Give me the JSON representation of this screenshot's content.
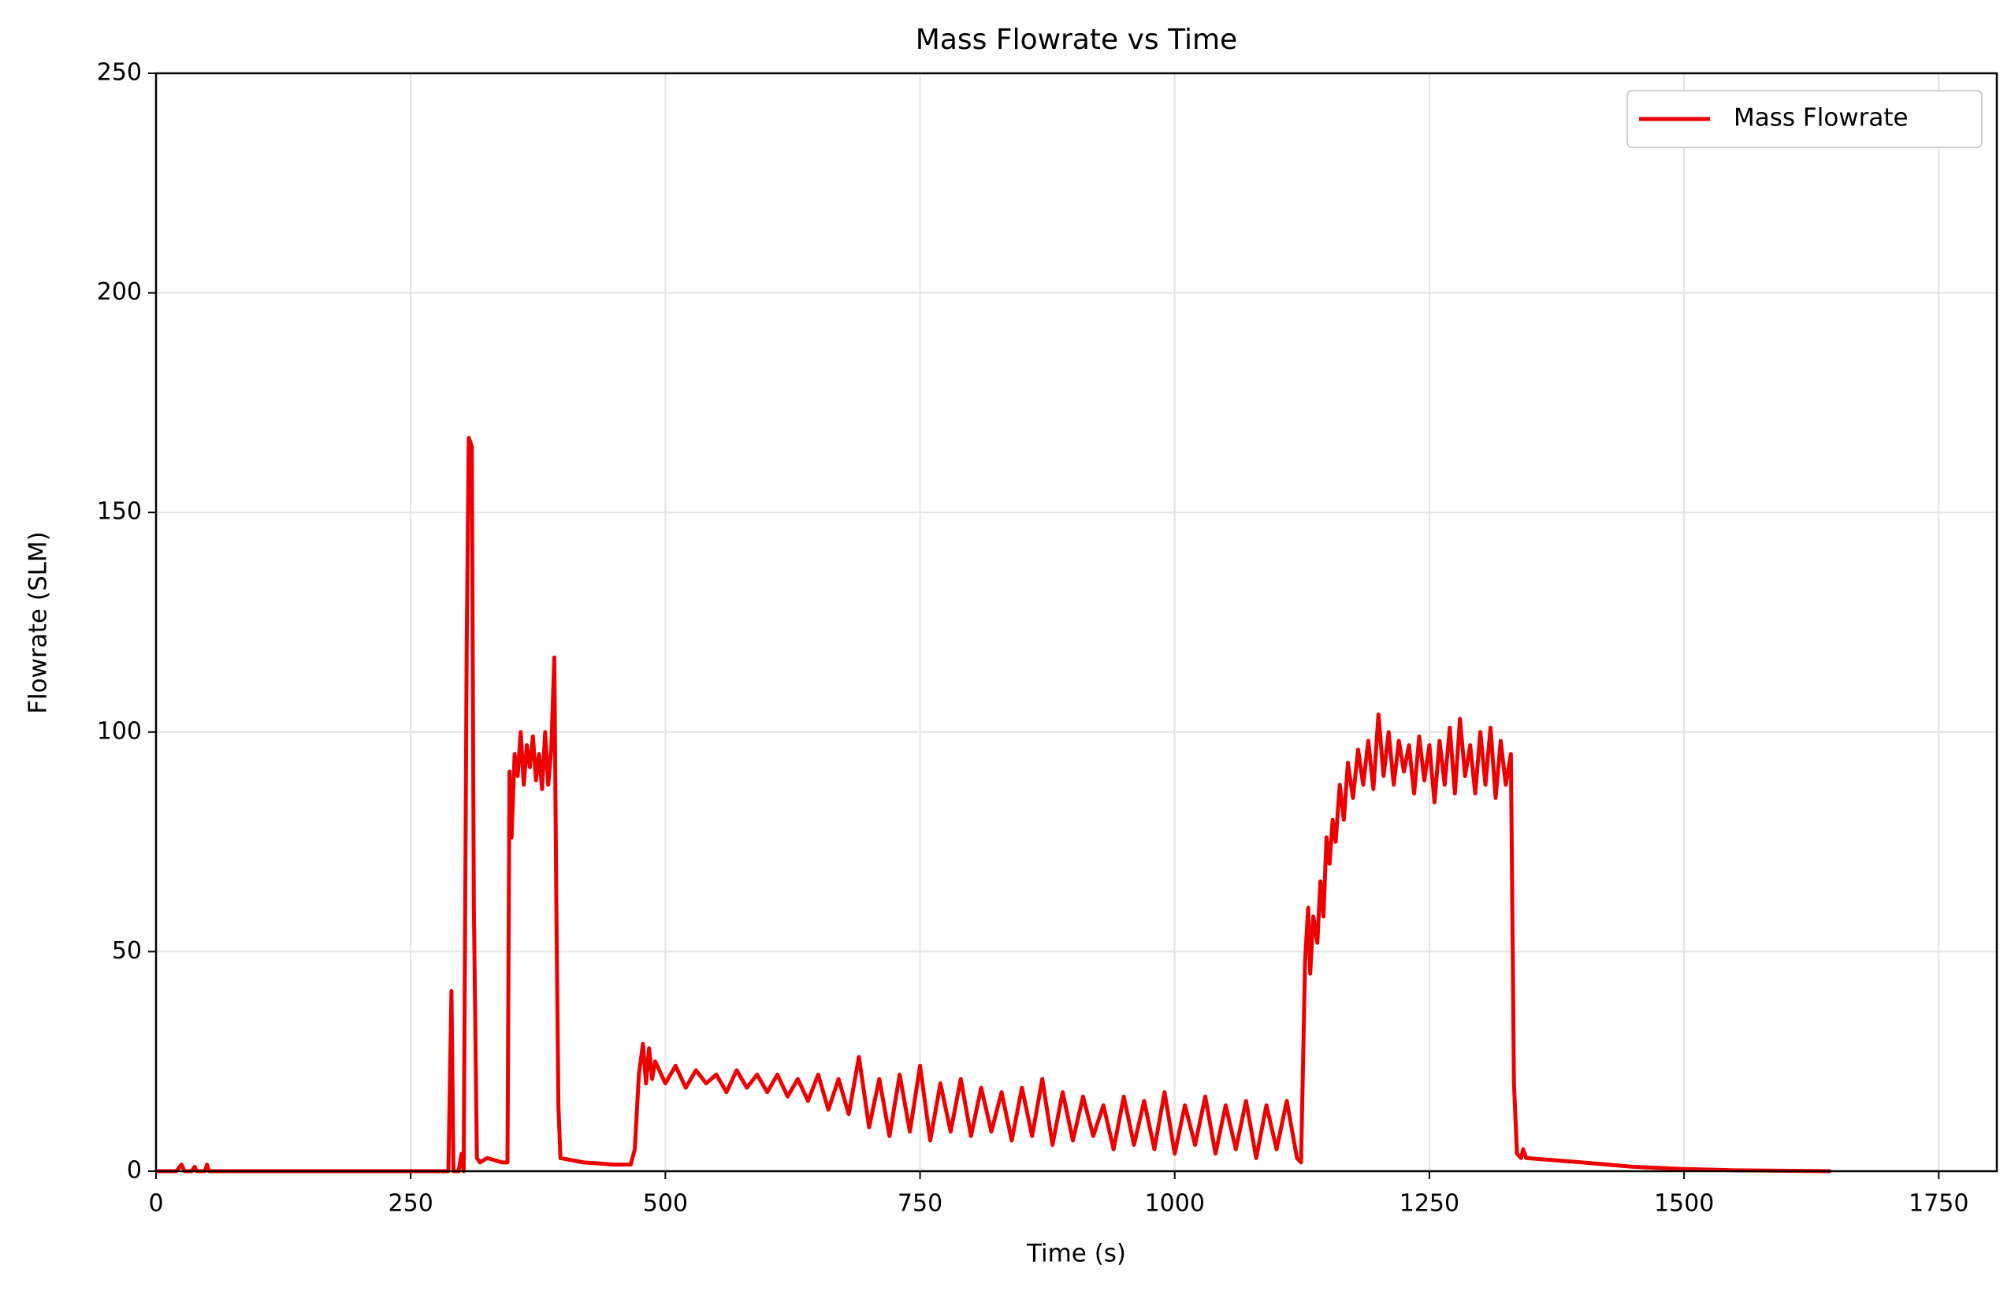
{
  "chart_data": {
    "type": "line",
    "title": "Mass Flowrate vs Time",
    "x_label": "Time (s)",
    "y_label": "Flowrate (SLM)",
    "xlim": [
      0,
      1807
    ],
    "ylim": [
      0,
      250
    ],
    "xticks": [
      0,
      250,
      500,
      750,
      1000,
      1250,
      1500,
      1750
    ],
    "yticks": [
      0,
      50,
      100,
      150,
      200,
      250
    ],
    "grid": true,
    "legend": "upper right",
    "x": [
      0,
      20,
      25,
      28,
      35,
      38,
      40,
      48,
      50,
      52,
      60,
      280,
      287,
      290,
      292,
      297,
      300,
      302,
      305,
      307,
      310,
      312,
      315,
      318,
      325,
      340,
      345,
      347,
      349,
      352,
      355,
      358,
      361,
      364,
      367,
      370,
      373,
      376,
      379,
      382,
      385,
      388,
      391,
      393,
      395,
      397,
      420,
      450,
      466,
      470,
      474,
      478,
      481,
      484,
      487,
      490,
      500,
      510,
      520,
      530,
      540,
      550,
      560,
      570,
      580,
      590,
      600,
      610,
      620,
      630,
      640,
      650,
      660,
      670,
      680,
      690,
      700,
      710,
      720,
      730,
      740,
      750,
      760,
      770,
      780,
      790,
      800,
      810,
      820,
      830,
      840,
      850,
      860,
      870,
      880,
      890,
      900,
      910,
      920,
      930,
      940,
      950,
      960,
      970,
      980,
      990,
      1000,
      1010,
      1020,
      1030,
      1040,
      1050,
      1060,
      1070,
      1080,
      1090,
      1100,
      1110,
      1120,
      1124,
      1126,
      1128,
      1131,
      1133,
      1136,
      1140,
      1143,
      1146,
      1149,
      1152,
      1155,
      1158,
      1162,
      1166,
      1170,
      1175,
      1180,
      1185,
      1190,
      1195,
      1200,
      1205,
      1210,
      1215,
      1220,
      1225,
      1230,
      1235,
      1240,
      1245,
      1250,
      1255,
      1260,
      1265,
      1270,
      1275,
      1280,
      1285,
      1290,
      1295,
      1300,
      1305,
      1310,
      1315,
      1320,
      1325,
      1330,
      1333,
      1336,
      1340,
      1342,
      1345,
      1400,
      1450,
      1500,
      1550,
      1644
    ],
    "series": [
      {
        "name": "Mass Flowrate",
        "color": "#ee0000",
        "values": [
          0,
          0,
          1.5,
          0,
          0,
          1,
          0,
          0,
          1.5,
          0,
          0,
          0,
          0,
          41,
          0,
          0,
          4,
          0,
          120,
          167,
          165,
          60,
          3,
          2,
          3,
          2,
          2,
          91,
          76,
          95,
          90,
          100,
          88,
          97,
          92,
          99,
          89,
          95,
          87,
          100,
          88,
          96,
          117,
          60,
          15,
          3,
          2,
          1.5,
          1.5,
          5,
          22,
          29,
          20,
          28,
          21,
          25,
          20,
          24,
          19,
          23,
          20,
          22,
          18,
          23,
          19,
          22,
          18,
          22,
          17,
          21,
          16,
          22,
          14,
          21,
          13,
          26,
          10,
          21,
          8,
          22,
          9,
          24,
          7,
          20,
          9,
          21,
          8,
          19,
          9,
          18,
          7,
          19,
          8,
          21,
          6,
          18,
          7,
          17,
          8,
          15,
          5,
          17,
          6,
          16,
          5,
          18,
          4,
          15,
          6,
          17,
          4,
          15,
          5,
          16,
          3,
          15,
          5,
          16,
          3,
          2,
          25,
          48,
          60,
          45,
          58,
          52,
          66,
          58,
          76,
          70,
          80,
          75,
          88,
          80,
          93,
          85,
          96,
          88,
          98,
          87,
          104,
          90,
          100,
          88,
          98,
          91,
          97,
          86,
          99,
          89,
          97,
          84,
          98,
          88,
          101,
          86,
          103,
          90,
          97,
          86,
          100,
          88,
          101,
          85,
          98,
          88,
          95,
          20,
          4,
          3,
          5,
          3,
          2,
          1,
          0.5,
          0.2,
          0
        ]
      }
    ]
  }
}
